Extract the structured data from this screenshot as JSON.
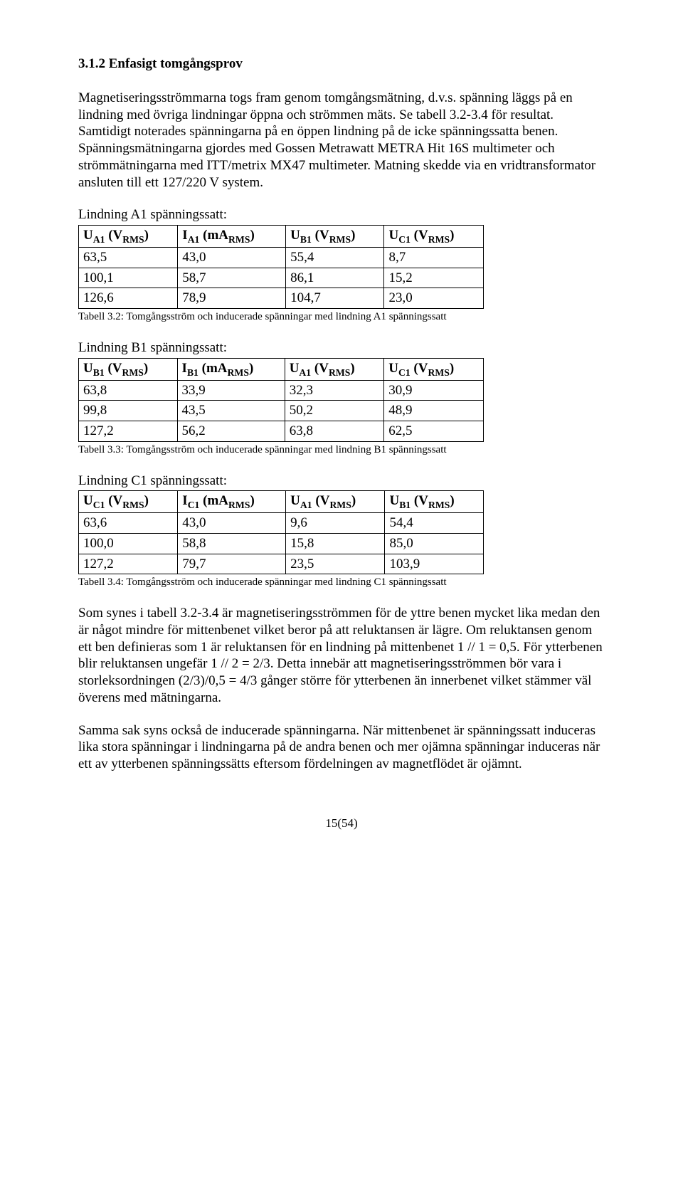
{
  "heading": "3.1.2 Enfasigt tomgångsprov",
  "p1": "Magnetiseringsströmmarna togs fram genom tomgångsmätning, d.v.s. spänning läggs på en lindning med övriga lindningar öppna och strömmen mäts. Se tabell 3.2-3.4 för resultat. Samtidigt noterades spänningarna på en öppen lindning på de icke spänningssatta benen. Spänningsmätningarna gjordes med Gossen Metrawatt METRA Hit 16S multimeter och strömmätningarna med ITT/metrix MX47 multimeter. Matning skedde via en vridtransformator ansluten till ett 127/220 V system.",
  "tableA": {
    "title": "Lindning A1 spänningssatt:",
    "headers": {
      "c1_main": "U",
      "c1_sub": "A1",
      "c1_par_main": "V",
      "c1_par_sub": "RMS",
      "c2_main": "I",
      "c2_sub": "A1",
      "c2_par_main": "mA",
      "c2_par_sub": "RMS",
      "c3_main": "U",
      "c3_sub": "B1",
      "c3_par_main": "V",
      "c3_par_sub": "RMS",
      "c4_main": "U",
      "c4_sub": "C1",
      "c4_par_main": "V",
      "c4_par_sub": "RMS"
    },
    "rows": [
      [
        "63,5",
        "43,0",
        "55,4",
        "8,7"
      ],
      [
        "100,1",
        "58,7",
        "86,1",
        "15,2"
      ],
      [
        "126,6",
        "78,9",
        "104,7",
        "23,0"
      ]
    ],
    "caption": "Tabell 3.2: Tomgångsström och inducerade spänningar med lindning A1 spänningssatt"
  },
  "tableB": {
    "title": "Lindning B1 spänningssatt:",
    "headers": {
      "c1_main": "U",
      "c1_sub": "B1",
      "c1_par_main": "V",
      "c1_par_sub": "RMS",
      "c2_main": "I",
      "c2_sub": "B1",
      "c2_par_main": "mA",
      "c2_par_sub": "RMS",
      "c3_main": "U",
      "c3_sub": "A1",
      "c3_par_main": "V",
      "c3_par_sub": "RMS",
      "c4_main": "U",
      "c4_sub": "C1",
      "c4_par_main": "V",
      "c4_par_sub": "RMS"
    },
    "rows": [
      [
        "63,8",
        "33,9",
        "32,3",
        "30,9"
      ],
      [
        "99,8",
        "43,5",
        "50,2",
        "48,9"
      ],
      [
        "127,2",
        "56,2",
        "63,8",
        "62,5"
      ]
    ],
    "caption": "Tabell 3.3: Tomgångsström och inducerade spänningar med lindning B1 spänningssatt"
  },
  "tableC": {
    "title": "Lindning C1 spänningssatt:",
    "headers": {
      "c1_main": "U",
      "c1_sub": "C1",
      "c1_par_main": "V",
      "c1_par_sub": "RMS",
      "c2_main": "I",
      "c2_sub": "C1",
      "c2_par_main": "mA",
      "c2_par_sub": "RMS",
      "c3_main": "U",
      "c3_sub": "A1",
      "c3_par_main": "V",
      "c3_par_sub": "RMS",
      "c4_main": "U",
      "c4_sub": "B1",
      "c4_par_main": "V",
      "c4_par_sub": "RMS"
    },
    "rows": [
      [
        "63,6",
        "43,0",
        "9,6",
        "54,4"
      ],
      [
        "100,0",
        "58,8",
        "15,8",
        "85,0"
      ],
      [
        "127,2",
        "79,7",
        "23,5",
        "103,9"
      ]
    ],
    "caption": "Tabell 3.4: Tomgångsström och inducerade spänningar med lindning C1 spänningssatt"
  },
  "p2": "Som synes i tabell 3.2-3.4 är magnetiseringsströmmen för de yttre benen mycket lika medan den är något mindre för mittenbenet vilket beror på att reluktansen är lägre. Om reluktansen genom ett ben definieras som 1 är reluktansen för en lindning på mittenbenet 1 // 1 = 0,5. För ytterbenen blir reluktansen ungefär 1 // 2 = 2/3. Detta innebär att magnetiseringsströmmen bör vara i storleksordningen (2/3)/0,5 = 4/3 gånger större för ytterbenen än innerbenet vilket stämmer väl överens med mätningarna.",
  "p3": "Samma sak syns också de inducerade spänningarna. När mittenbenet är spänningssatt induceras lika stora spänningar i lindningarna på de andra benen och mer ojämna spänningar induceras när ett av ytterbenen spänningssätts eftersom fördelningen av magnetflödet är ojämnt.",
  "pageNumber": "15(54)"
}
